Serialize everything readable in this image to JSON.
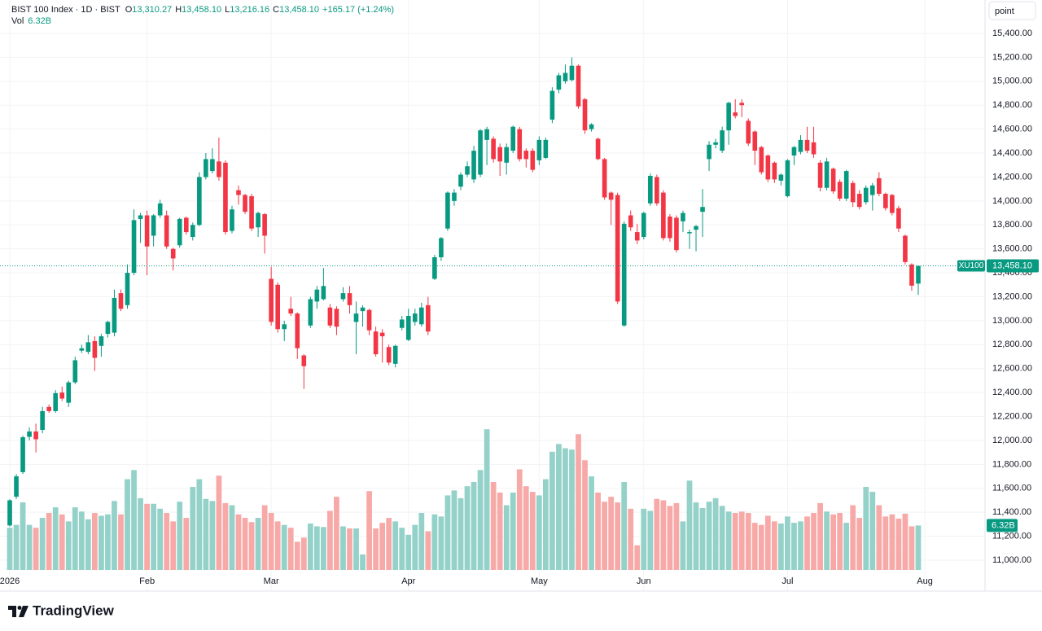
{
  "chart_data": {
    "type": "candlestick",
    "legend": {
      "title": "BIST 100 Index · 1D · BIST",
      "items": [
        {
          "key": "O",
          "text": "13,310.27"
        },
        {
          "key": "H",
          "text": "13,458.10"
        },
        {
          "key": "L",
          "text": "13,216.16"
        },
        {
          "key": "C",
          "text": "13,458.10"
        }
      ],
      "change": "+165.17 (+1.24%)",
      "vol_key": "Vol",
      "vol_text": "6.32B"
    },
    "symbol": "XU100",
    "last_price_label": "13,458.10",
    "scale_button": "point",
    "brand": "TradingView",
    "up_color": "#089981",
    "down_color": "#f23645",
    "up_volume_color": "#93d1c9",
    "down_volume_color": "#f7a9a7",
    "grid": true,
    "candles": [
      [
        11290,
        11510,
        11280,
        11500
      ],
      [
        11530,
        11720,
        11510,
        11700
      ],
      [
        11735,
        12040,
        11720,
        12027
      ],
      [
        12030,
        12110,
        12000,
        12075
      ],
      [
        12075,
        12140,
        11900,
        12010
      ],
      [
        12088,
        12280,
        12060,
        12245
      ],
      [
        12280,
        12300,
        12230,
        12245
      ],
      [
        12245,
        12420,
        12230,
        12395
      ],
      [
        12400,
        12450,
        12330,
        12350
      ],
      [
        12315,
        12500,
        12280,
        12485
      ],
      [
        12485,
        12700,
        12470,
        12670
      ],
      [
        12750,
        12800,
        12730,
        12770
      ],
      [
        12740,
        12880,
        12720,
        12820
      ],
      [
        12830,
        12870,
        12580,
        12690
      ],
      [
        12790,
        12890,
        12700,
        12870
      ],
      [
        12890,
        13000,
        12860,
        12990
      ],
      [
        12900,
        13260,
        12870,
        13190
      ],
      [
        13230,
        13260,
        13080,
        13100
      ],
      [
        13130,
        13470,
        13100,
        13400
      ],
      [
        13400,
        13930,
        13380,
        13840
      ],
      [
        13850,
        13900,
        13650,
        13880
      ],
      [
        13880,
        13920,
        13380,
        13620
      ],
      [
        13710,
        13890,
        13620,
        13880
      ],
      [
        13880,
        14010,
        13860,
        13980
      ],
      [
        13880,
        13920,
        13600,
        13620
      ],
      [
        13600,
        13610,
        13420,
        13520
      ],
      [
        13630,
        13860,
        13610,
        13850
      ],
      [
        13860,
        13870,
        13720,
        13740
      ],
      [
        13700,
        13820,
        13670,
        13800
      ],
      [
        13800,
        14240,
        13790,
        14200
      ],
      [
        14200,
        14400,
        14180,
        14350
      ],
      [
        14250,
        14440,
        14230,
        14350
      ],
      [
        14330,
        14530,
        14170,
        14200
      ],
      [
        14320,
        14340,
        13720,
        13740
      ],
      [
        13750,
        13960,
        13730,
        13930
      ],
      [
        14090,
        14130,
        13970,
        14050
      ],
      [
        14050,
        14060,
        13890,
        13910
      ],
      [
        14040,
        14060,
        13750,
        13770
      ],
      [
        13780,
        13910,
        13700,
        13900
      ],
      [
        13890,
        13900,
        13560,
        13710
      ],
      [
        13350,
        13450,
        12960,
        12990
      ],
      [
        13300,
        13320,
        12900,
        12930
      ],
      [
        12930,
        13000,
        12830,
        12970
      ],
      [
        13100,
        13200,
        13040,
        13060
      ],
      [
        13060,
        13070,
        12680,
        12770
      ],
      [
        12710,
        12720,
        12430,
        12620
      ],
      [
        12960,
        13200,
        12940,
        13180
      ],
      [
        13160,
        13290,
        13100,
        13260
      ],
      [
        13180,
        13440,
        13170,
        13290
      ],
      [
        13110,
        13140,
        12940,
        12960
      ],
      [
        13100,
        13120,
        12880,
        12950
      ],
      [
        13180,
        13280,
        13160,
        13230
      ],
      [
        13230,
        13290,
        13060,
        13130
      ],
      [
        12990,
        13160,
        12720,
        13060
      ],
      [
        13080,
        13130,
        12950,
        13110
      ],
      [
        13090,
        13100,
        12880,
        12920
      ],
      [
        12910,
        12950,
        12700,
        12720
      ],
      [
        12900,
        12930,
        12650,
        12870
      ],
      [
        12780,
        12800,
        12630,
        12650
      ],
      [
        12640,
        12800,
        12610,
        12790
      ],
      [
        12940,
        13040,
        12920,
        13010
      ],
      [
        12840,
        13100,
        12830,
        13040
      ],
      [
        12990,
        13100,
        12960,
        13060
      ],
      [
        12970,
        13150,
        12950,
        13110
      ],
      [
        13130,
        13200,
        12880,
        12910
      ],
      [
        13350,
        13550,
        13340,
        13530
      ],
      [
        13530,
        13700,
        13500,
        13690
      ],
      [
        13770,
        14080,
        13750,
        14070
      ],
      [
        14000,
        14100,
        13960,
        14070
      ],
      [
        14120,
        14240,
        14090,
        14220
      ],
      [
        14220,
        14330,
        14200,
        14290
      ],
      [
        14180,
        14460,
        14150,
        14420
      ],
      [
        14220,
        14600,
        14200,
        14590
      ],
      [
        14510,
        14620,
        14300,
        14600
      ],
      [
        14520,
        14540,
        14320,
        14350
      ],
      [
        14450,
        14480,
        14210,
        14330
      ],
      [
        14320,
        14480,
        14220,
        14450
      ],
      [
        14420,
        14630,
        14400,
        14620
      ],
      [
        14600,
        14620,
        14330,
        14350
      ],
      [
        14420,
        14440,
        14280,
        14350
      ],
      [
        14420,
        14440,
        14240,
        14260
      ],
      [
        14340,
        14540,
        14300,
        14510
      ],
      [
        14360,
        14530,
        14350,
        14510
      ],
      [
        14680,
        14950,
        14650,
        14920
      ],
      [
        14930,
        15070,
        14900,
        15050
      ],
      [
        15000,
        15140,
        14980,
        15070
      ],
      [
        15010,
        15200,
        15000,
        15130
      ],
      [
        15130,
        15140,
        14770,
        14790
      ],
      [
        14850,
        14860,
        14560,
        14590
      ],
      [
        14600,
        14650,
        14580,
        14640
      ],
      [
        14520,
        14530,
        14340,
        14350
      ],
      [
        14350,
        14360,
        14010,
        14030
      ],
      [
        14070,
        14080,
        13800,
        14010
      ],
      [
        14050,
        14070,
        13140,
        13160
      ],
      [
        12960,
        13830,
        12950,
        13810
      ],
      [
        13880,
        13920,
        13750,
        13780
      ],
      [
        13740,
        13810,
        13640,
        13670
      ],
      [
        13700,
        13910,
        13680,
        13900
      ],
      [
        13980,
        14230,
        13960,
        14210
      ],
      [
        14200,
        14220,
        13960,
        13980
      ],
      [
        14070,
        14090,
        13670,
        13690
      ],
      [
        13870,
        13890,
        13660,
        13690
      ],
      [
        13860,
        13880,
        13570,
        13590
      ],
      [
        13830,
        13920,
        13740,
        13900
      ],
      [
        13730,
        13760,
        13600,
        13740
      ],
      [
        13760,
        13800,
        13580,
        13790
      ],
      [
        13910,
        14100,
        13700,
        13950
      ],
      [
        14350,
        14500,
        14250,
        14470
      ],
      [
        14470,
        14520,
        14440,
        14490
      ],
      [
        14420,
        14620,
        14400,
        14590
      ],
      [
        14590,
        14830,
        14470,
        14820
      ],
      [
        14740,
        14850,
        14690,
        14710
      ],
      [
        14820,
        14850,
        14700,
        14800
      ],
      [
        14670,
        14690,
        14460,
        14480
      ],
      [
        14580,
        14590,
        14300,
        14420
      ],
      [
        14450,
        14460,
        14220,
        14240
      ],
      [
        14380,
        14390,
        14160,
        14180
      ],
      [
        14320,
        14330,
        14150,
        14180
      ],
      [
        14170,
        14230,
        14130,
        14220
      ],
      [
        14040,
        14350,
        14030,
        14340
      ],
      [
        14380,
        14460,
        14300,
        14450
      ],
      [
        14410,
        14550,
        14390,
        14510
      ],
      [
        14510,
        14620,
        14400,
        14420
      ],
      [
        14490,
        14620,
        14360,
        14390
      ],
      [
        14320,
        14340,
        14080,
        14110
      ],
      [
        14110,
        14360,
        14090,
        14330
      ],
      [
        14270,
        14280,
        14060,
        14080
      ],
      [
        14160,
        14180,
        14000,
        14020
      ],
      [
        14020,
        14260,
        14000,
        14250
      ],
      [
        14150,
        14170,
        13950,
        13990
      ],
      [
        14060,
        14090,
        13930,
        13950
      ],
      [
        13990,
        14130,
        13970,
        14110
      ],
      [
        14050,
        14150,
        13920,
        14130
      ],
      [
        14190,
        14240,
        14040,
        14060
      ],
      [
        14060,
        14070,
        13920,
        13940
      ],
      [
        14050,
        14060,
        13880,
        13900
      ],
      [
        13940,
        13960,
        13740,
        13770
      ],
      [
        13710,
        13720,
        13470,
        13490
      ],
      [
        13470,
        13480,
        13250,
        13292.93
      ],
      [
        13310.27,
        13458.1,
        13216.16,
        13458.1
      ]
    ],
    "volume": [
      6.0,
      6.4,
      9.6,
      6.4,
      6.0,
      7.4,
      8.1,
      8.9,
      7.9,
      6.9,
      8.9,
      8.3,
      7.2,
      8.1,
      7.7,
      7.9,
      9.8,
      7.9,
      12.9,
      14.2,
      10.2,
      9.4,
      9.4,
      8.7,
      8.1,
      6.9,
      9.7,
      7.4,
      11.8,
      12.9,
      10.1,
      9.8,
      13.4,
      9.5,
      9.2,
      7.9,
      7.4,
      6.8,
      7.4,
      9.2,
      8.1,
      6.9,
      6.4,
      6.0,
      4.0,
      4.6,
      6.6,
      6.2,
      6.1,
      8.4,
      10.4,
      6.2,
      5.9,
      5.9,
      2.2,
      11.2,
      5.9,
      6.7,
      7.4,
      6.9,
      6.0,
      5.0,
      6.4,
      8.1,
      5.5,
      7.9,
      7.6,
      10.6,
      11.3,
      10.2,
      11.9,
      12.5,
      14.2,
      20.0,
      12.5,
      11.0,
      9.2,
      11.0,
      14.3,
      11.9,
      11.1,
      10.6,
      12.9,
      16.8,
      17.9,
      17.3,
      17.1,
      19.3,
      15.6,
      13.3,
      11.0,
      9.7,
      10.4,
      9.6,
      12.5,
      8.7,
      3.5,
      8.7,
      8.4,
      10.1,
      9.9,
      9.1,
      9.5,
      6.9,
      12.7,
      9.6,
      8.8,
      9.7,
      10.2,
      9.1,
      8.3,
      8.1,
      8.3,
      8.1,
      6.7,
      6.4,
      7.7,
      6.9,
      6.6,
      7.6,
      6.7,
      6.9,
      7.6,
      8.1,
      9.5,
      8.3,
      7.9,
      8.1,
      6.7,
      9.2,
      7.4,
      11.8,
      11.1,
      9.2,
      7.6,
      7.9,
      7.3,
      8.0,
      6.2,
      6.32
    ],
    "volume_label": "6.32B",
    "vlim": [
      0,
      25
    ],
    "xlim": [
      0,
      139
    ],
    "xticks": [
      {
        "value": 0,
        "label": "2026"
      },
      {
        "value": 21,
        "label": "Feb"
      },
      {
        "value": 40,
        "label": "Mar"
      },
      {
        "value": 61,
        "label": "Apr"
      },
      {
        "value": 81,
        "label": "May"
      },
      {
        "value": 97,
        "label": "Jun"
      },
      {
        "value": 119,
        "label": "Jul"
      },
      {
        "value": 140,
        "label": "Aug"
      }
    ],
    "ylim": [
      11000,
      15400
    ],
    "yticks": [
      {
        "value": 11000,
        "label": "11,000.00"
      },
      {
        "value": 11200,
        "label": "11,200.00"
      },
      {
        "value": 11400,
        "label": "11,400.00"
      },
      {
        "value": 11600,
        "label": "11,600.00"
      },
      {
        "value": 11800,
        "label": "11,800.00"
      },
      {
        "value": 12000,
        "label": "12,000.00"
      },
      {
        "value": 12200,
        "label": "12,200.00"
      },
      {
        "value": 12400,
        "label": "12,400.00"
      },
      {
        "value": 12600,
        "label": "12,600.00"
      },
      {
        "value": 12800,
        "label": "12,800.00"
      },
      {
        "value": 13000,
        "label": "13,000.00"
      },
      {
        "value": 13200,
        "label": "13,200.00"
      },
      {
        "value": 13400,
        "label": "13,400.00"
      },
      {
        "value": 13600,
        "label": "13,600.00"
      },
      {
        "value": 13800,
        "label": "13,800.00"
      },
      {
        "value": 14000,
        "label": "14,000.00"
      },
      {
        "value": 14200,
        "label": "14,200.00"
      },
      {
        "value": 14400,
        "label": "14,400.00"
      },
      {
        "value": 14600,
        "label": "14,600.00"
      },
      {
        "value": 14800,
        "label": "14,800.00"
      },
      {
        "value": 15000,
        "label": "15,000.00"
      },
      {
        "value": 15200,
        "label": "15,200.00"
      },
      {
        "value": 15400,
        "label": "15,400.00"
      }
    ]
  }
}
